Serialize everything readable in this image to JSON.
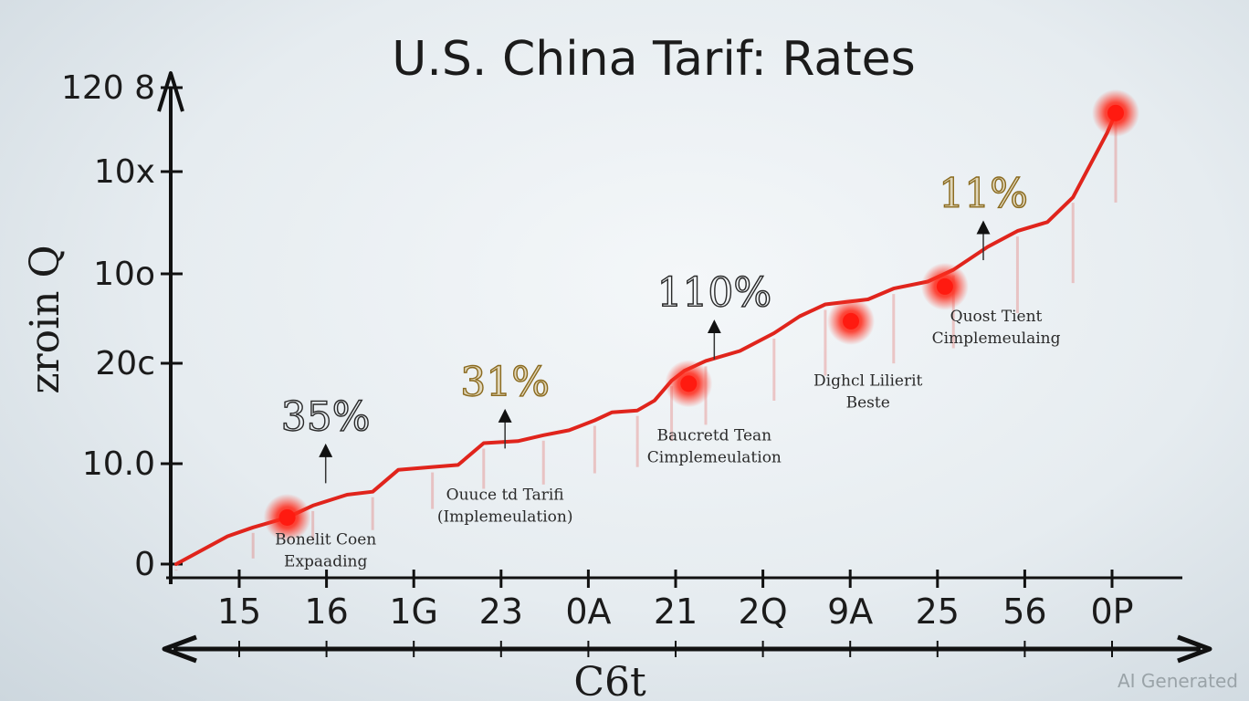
{
  "chart_data": {
    "type": "line",
    "title": "U.S. China Tarif: Rates",
    "xlabel": "C6t",
    "ylabel": "zroin Q",
    "x_tick_labels": [
      "15",
      "16",
      "1G",
      "23",
      "0A",
      "21",
      "2Q",
      "9A",
      "25",
      "56",
      "0P"
    ],
    "y_tick_labels": [
      "0",
      "10.0",
      "20c",
      "10o",
      "10x",
      "120 8"
    ],
    "x_range": [
      0,
      11
    ],
    "y_range": [
      0,
      5
    ],
    "series": [
      {
        "color": "#e0241c",
        "x": [
          0,
          0.6,
          0.9,
          1.3,
          1.6,
          2.0,
          2.3,
          2.6,
          3.0,
          3.3,
          3.6,
          4.0,
          4.3,
          4.6,
          4.9,
          5.1,
          5.4,
          5.6,
          5.8,
          5.95,
          6.2,
          6.6,
          7.0,
          7.3,
          7.6,
          8.1,
          8.4,
          8.8,
          9.1,
          9.5,
          9.85,
          10.2,
          10.5,
          10.9,
          11.0
        ],
        "y": [
          0,
          0.28,
          0.37,
          0.47,
          0.59,
          0.7,
          0.73,
          0.95,
          0.98,
          1.0,
          1.22,
          1.24,
          1.3,
          1.35,
          1.45,
          1.53,
          1.55,
          1.65,
          1.85,
          1.95,
          2.05,
          2.15,
          2.33,
          2.5,
          2.62,
          2.67,
          2.78,
          2.85,
          2.97,
          3.2,
          3.36,
          3.45,
          3.7,
          4.35,
          4.55
        ]
      }
    ],
    "highlights": [
      {
        "x": 1.3,
        "y": 0.47
      },
      {
        "x": 6.0,
        "y": 1.82
      },
      {
        "x": 7.9,
        "y": 2.45
      },
      {
        "x": 9.0,
        "y": 2.8
      },
      {
        "x": 11.0,
        "y": 4.55
      }
    ],
    "callouts": [
      {
        "text": "35%",
        "x": 1.75,
        "y": 1.35
      },
      {
        "text": "31%",
        "x": 3.85,
        "y": 1.7
      },
      {
        "text": "110%",
        "x": 6.3,
        "y": 2.6
      },
      {
        "text": "11%",
        "x": 9.45,
        "y": 3.6
      }
    ],
    "annotations": [
      {
        "lines": [
          "Bonelit Coen",
          "Expaading"
        ],
        "x": 1.75,
        "y": 0.2
      },
      {
        "lines": [
          "Ouuce td Tarifi",
          "(Implemeulation)"
        ],
        "x": 3.85,
        "y": 0.65
      },
      {
        "lines": [
          "Baucretd Tean",
          "Cimplemeulation"
        ],
        "x": 6.3,
        "y": 1.25
      },
      {
        "lines": [
          "Dighcl Lilierit",
          "Beste"
        ],
        "x": 8.1,
        "y": 1.8
      },
      {
        "lines": [
          "Quost Tient",
          "Cimplemeulaing"
        ],
        "x": 9.6,
        "y": 2.45
      }
    ],
    "grid": false,
    "legend": "none"
  },
  "watermark": "AI Generated"
}
